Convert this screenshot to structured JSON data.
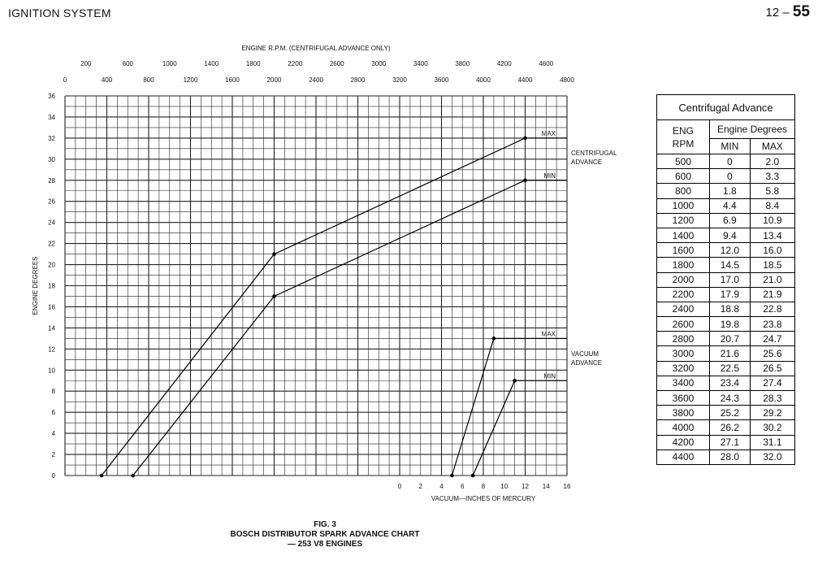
{
  "header": {
    "section_title": "IGNITION SYSTEM",
    "page_prefix": "12 –",
    "page_number": "55"
  },
  "chart_data": {
    "type": "line",
    "ylabel": "ENGINE DEGREES",
    "yticks": [
      "0",
      "2",
      "4",
      "6",
      "8",
      "10",
      "12",
      "14",
      "16",
      "18",
      "20",
      "22",
      "24",
      "26",
      "28",
      "30",
      "32",
      "34",
      "36"
    ],
    "ylim": [
      0,
      36
    ],
    "top_axis_title": "ENGINE R.P.M. (CENTRIFUGAL ADVANCE ONLY)",
    "top_axis_upper_ticks": [
      "200",
      "600",
      "1000",
      "1400",
      "1800",
      "2200",
      "2600",
      "3000",
      "3400",
      "3800",
      "4200",
      "4600"
    ],
    "top_axis_lower_ticks": [
      "0",
      "400",
      "800",
      "1200",
      "1600",
      "2000",
      "2400",
      "2800",
      "3200",
      "3600",
      "4000",
      "4400",
      "4800"
    ],
    "xlim_rpm": [
      0,
      4800
    ],
    "vacuum_axis_title": "VACUUM—INCHES OF MERCURY",
    "vacuum_ticks": [
      "0",
      "2",
      "4",
      "6",
      "8",
      "10",
      "12",
      "14",
      "16"
    ],
    "xlim_vacuum": [
      0,
      16
    ],
    "group_labels": {
      "centrifugal": [
        "CENTRIFUGAL",
        "ADVANCE"
      ],
      "vacuum": [
        "VACUUM",
        "ADVANCE"
      ]
    },
    "series": [
      {
        "name": "MAX",
        "group": "centrifugal",
        "axis": "rpm",
        "x": [
          350,
          2000,
          4400
        ],
        "y": [
          0,
          21,
          32
        ],
        "flat_to": 4800
      },
      {
        "name": "MIN",
        "group": "centrifugal",
        "axis": "rpm",
        "x": [
          650,
          2000,
          4400
        ],
        "y": [
          0,
          17,
          28
        ],
        "flat_to": 4800
      },
      {
        "name": "MAX",
        "group": "vacuum",
        "axis": "vacuum",
        "x": [
          5,
          9
        ],
        "y": [
          0,
          13
        ],
        "flat_to": 16
      },
      {
        "name": "MIN",
        "group": "vacuum",
        "axis": "vacuum",
        "x": [
          7,
          11
        ],
        "y": [
          0,
          9
        ],
        "flat_to": 16
      }
    ]
  },
  "table": {
    "title": "Centrifugal Advance",
    "col_rpm": [
      "ENG",
      "RPM"
    ],
    "col_degrees": "Engine Degrees",
    "col_min": "MIN",
    "col_max": "MAX",
    "rows": [
      [
        "500",
        "0",
        "2.0"
      ],
      [
        "600",
        "0",
        "3.3"
      ],
      [
        "800",
        "1.8",
        "5.8"
      ],
      [
        "1000",
        "4.4",
        "8.4"
      ],
      [
        "1200",
        "6.9",
        "10.9"
      ],
      [
        "1400",
        "9.4",
        "13.4"
      ],
      [
        "1600",
        "12.0",
        "16.0"
      ],
      [
        "1800",
        "14.5",
        "18.5"
      ],
      [
        "2000",
        "17.0",
        "21.0"
      ],
      [
        "2200",
        "17.9",
        "21.9"
      ],
      [
        "2400",
        "18.8",
        "22.8"
      ],
      [
        "2600",
        "19.8",
        "23.8"
      ],
      [
        "2800",
        "20.7",
        "24.7"
      ],
      [
        "3000",
        "21.6",
        "25.6"
      ],
      [
        "3200",
        "22.5",
        "26.5"
      ],
      [
        "3400",
        "23.4",
        "27.4"
      ],
      [
        "3600",
        "24.3",
        "28.3"
      ],
      [
        "3800",
        "25.2",
        "29.2"
      ],
      [
        "4000",
        "26.2",
        "30.2"
      ],
      [
        "4200",
        "27.1",
        "31.1"
      ],
      [
        "4400",
        "28.0",
        "32.0"
      ]
    ]
  },
  "caption": {
    "fig": "FIG. 3",
    "title": "BOSCH DISTRIBUTOR SPARK ADVANCE CHART",
    "subtitle": "— 253 V8 ENGINES"
  }
}
